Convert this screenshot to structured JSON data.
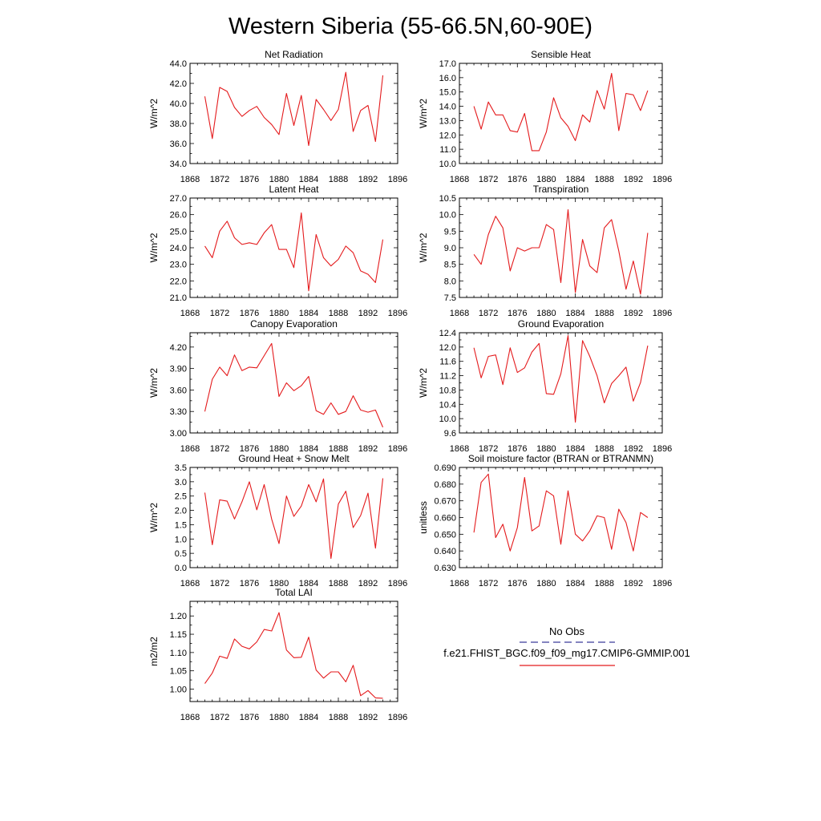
{
  "figure": {
    "title": "Western Siberia (55-66.5N,60-90E)"
  },
  "colors": {
    "model": "#e41a1c",
    "obs": "#3a3a9a",
    "axis": "#000000"
  },
  "legend": {
    "obs_label": "No Obs",
    "model_label": "f.e21.FHIST_BGC.f09_f09_mg17.CMIP6-GMMIP.001"
  },
  "chart_data": [
    {
      "type": "line",
      "title": "Net Radiation",
      "xlabel": "",
      "ylabel": "W/m^2",
      "xlim": [
        1868,
        1896
      ],
      "ylim": [
        34.0,
        44.0
      ],
      "xticks": [
        1868,
        1872,
        1876,
        1880,
        1884,
        1888,
        1892,
        1896
      ],
      "xtick_labels": [
        "1868",
        "1872",
        "1876",
        "1880",
        "1884",
        "1888",
        "1892",
        "1896"
      ],
      "yticks": [
        34.0,
        36.0,
        38.0,
        40.0,
        42.0,
        44.0
      ],
      "ytick_labels": [
        "34.0",
        "36.0",
        "38.0",
        "40.0",
        "42.0",
        "44.0"
      ],
      "series": [
        {
          "x": [
            1870,
            1871,
            1872,
            1873,
            1874,
            1875,
            1876,
            1877,
            1878,
            1879,
            1880,
            1881,
            1882,
            1883,
            1884,
            1885,
            1886,
            1887,
            1888,
            1889,
            1890,
            1891,
            1892,
            1893,
            1894
          ],
          "values": [
            40.7,
            36.5,
            41.6,
            41.2,
            39.6,
            38.7,
            39.3,
            39.7,
            38.6,
            37.9,
            36.9,
            41.0,
            37.8,
            40.8,
            35.8,
            40.4,
            39.4,
            38.3,
            39.4,
            43.1,
            37.2,
            39.3,
            39.8,
            36.2,
            42.8
          ]
        }
      ]
    },
    {
      "type": "line",
      "title": "Sensible Heat",
      "xlabel": "",
      "ylabel": "W/m^2",
      "xlim": [
        1868,
        1896
      ],
      "ylim": [
        10.0,
        17.0
      ],
      "xticks": [
        1868,
        1872,
        1876,
        1880,
        1884,
        1888,
        1892,
        1896
      ],
      "xtick_labels": [
        "1868",
        "1872",
        "1876",
        "1880",
        "1884",
        "1888",
        "1892",
        "1896"
      ],
      "yticks": [
        10.0,
        11.0,
        12.0,
        13.0,
        14.0,
        15.0,
        16.0,
        17.0
      ],
      "ytick_labels": [
        "10.0",
        "11.0",
        "12.0",
        "13.0",
        "14.0",
        "15.0",
        "16.0",
        "17.0"
      ],
      "series": [
        {
          "x": [
            1870,
            1871,
            1872,
            1873,
            1874,
            1875,
            1876,
            1877,
            1878,
            1879,
            1880,
            1881,
            1882,
            1883,
            1884,
            1885,
            1886,
            1887,
            1888,
            1889,
            1890,
            1891,
            1892,
            1893,
            1894
          ],
          "values": [
            14.0,
            12.4,
            14.3,
            13.4,
            13.4,
            12.3,
            12.2,
            13.5,
            10.9,
            10.9,
            12.2,
            14.6,
            13.2,
            12.6,
            11.6,
            13.4,
            12.9,
            15.1,
            13.8,
            16.3,
            12.3,
            14.9,
            14.8,
            13.7,
            15.1
          ]
        }
      ]
    },
    {
      "type": "line",
      "title": "Latent Heat",
      "xlabel": "",
      "ylabel": "W/m^2",
      "xlim": [
        1868,
        1896
      ],
      "ylim": [
        21.0,
        27.0
      ],
      "xticks": [
        1868,
        1872,
        1876,
        1880,
        1884,
        1888,
        1892,
        1896
      ],
      "xtick_labels": [
        "1868",
        "1872",
        "1876",
        "1880",
        "1884",
        "1888",
        "1892",
        "1896"
      ],
      "yticks": [
        21.0,
        22.0,
        23.0,
        24.0,
        25.0,
        26.0,
        27.0
      ],
      "ytick_labels": [
        "21.0",
        "22.0",
        "23.0",
        "24.0",
        "25.0",
        "26.0",
        "27.0"
      ],
      "series": [
        {
          "x": [
            1870,
            1871,
            1872,
            1873,
            1874,
            1875,
            1876,
            1877,
            1878,
            1879,
            1880,
            1881,
            1882,
            1883,
            1884,
            1885,
            1886,
            1887,
            1888,
            1889,
            1890,
            1891,
            1892,
            1893,
            1894
          ],
          "values": [
            24.1,
            23.4,
            25.0,
            25.6,
            24.6,
            24.2,
            24.3,
            24.2,
            24.9,
            25.4,
            23.9,
            23.9,
            22.8,
            26.1,
            21.4,
            24.8,
            23.4,
            22.9,
            23.3,
            24.1,
            23.7,
            22.6,
            22.4,
            21.9,
            24.5
          ]
        }
      ]
    },
    {
      "type": "line",
      "title": "Transpiration",
      "xlabel": "",
      "ylabel": "W/m^2",
      "xlim": [
        1868,
        1896
      ],
      "ylim": [
        7.5,
        10.5
      ],
      "xticks": [
        1868,
        1872,
        1876,
        1880,
        1884,
        1888,
        1892,
        1896
      ],
      "xtick_labels": [
        "1868",
        "1872",
        "1876",
        "1880",
        "1884",
        "1888",
        "1892",
        "1896"
      ],
      "yticks": [
        7.5,
        8.0,
        8.5,
        9.0,
        9.5,
        10.0,
        10.5
      ],
      "ytick_labels": [
        "7.5",
        "8.0",
        "8.5",
        "9.0",
        "9.5",
        "10.0",
        "10.5"
      ],
      "series": [
        {
          "x": [
            1870,
            1871,
            1872,
            1873,
            1874,
            1875,
            1876,
            1877,
            1878,
            1879,
            1880,
            1881,
            1882,
            1883,
            1884,
            1885,
            1886,
            1887,
            1888,
            1889,
            1890,
            1891,
            1892,
            1893,
            1894
          ],
          "values": [
            8.8,
            8.5,
            9.4,
            9.95,
            9.6,
            8.3,
            9.0,
            8.9,
            9.0,
            9.0,
            9.7,
            9.55,
            7.95,
            10.15,
            7.65,
            9.25,
            8.45,
            8.25,
            9.6,
            9.85,
            8.9,
            7.75,
            8.6,
            7.6,
            9.45
          ]
        }
      ]
    },
    {
      "type": "line",
      "title": "Canopy Evaporation",
      "xlabel": "",
      "ylabel": "W/m^2",
      "xlim": [
        1868,
        1896
      ],
      "ylim": [
        3.0,
        4.4
      ],
      "xticks": [
        1868,
        1872,
        1876,
        1880,
        1884,
        1888,
        1892,
        1896
      ],
      "xtick_labels": [
        "1868",
        "1872",
        "1876",
        "1880",
        "1884",
        "1888",
        "1892",
        "1896"
      ],
      "yticks": [
        3.0,
        3.3,
        3.6,
        3.9,
        4.2
      ],
      "ytick_labels": [
        "3.00",
        "3.30",
        "3.60",
        "3.90",
        "4.20"
      ],
      "series": [
        {
          "x": [
            1870,
            1871,
            1872,
            1873,
            1874,
            1875,
            1876,
            1877,
            1878,
            1879,
            1880,
            1881,
            1882,
            1883,
            1884,
            1885,
            1886,
            1887,
            1888,
            1889,
            1890,
            1891,
            1892,
            1893,
            1894
          ],
          "values": [
            3.3,
            3.75,
            3.92,
            3.8,
            4.09,
            3.87,
            3.92,
            3.91,
            4.08,
            4.25,
            3.51,
            3.7,
            3.59,
            3.66,
            3.79,
            3.31,
            3.26,
            3.42,
            3.26,
            3.3,
            3.52,
            3.32,
            3.29,
            3.32,
            3.08
          ]
        }
      ]
    },
    {
      "type": "line",
      "title": "Ground Evaporation",
      "xlabel": "",
      "ylabel": "W/m^2",
      "xlim": [
        1868,
        1896
      ],
      "ylim": [
        9.6,
        12.4
      ],
      "xticks": [
        1868,
        1872,
        1876,
        1880,
        1884,
        1888,
        1892,
        1896
      ],
      "xtick_labels": [
        "1868",
        "1872",
        "1876",
        "1880",
        "1884",
        "1888",
        "1892",
        "1896"
      ],
      "yticks": [
        9.6,
        10.0,
        10.4,
        10.8,
        11.2,
        11.6,
        12.0,
        12.4
      ],
      "ytick_labels": [
        "9.6",
        "10.0",
        "10.4",
        "10.8",
        "11.2",
        "11.6",
        "12.0",
        "12.4"
      ],
      "series": [
        {
          "x": [
            1870,
            1871,
            1872,
            1873,
            1874,
            1875,
            1876,
            1877,
            1878,
            1879,
            1880,
            1881,
            1882,
            1883,
            1884,
            1885,
            1886,
            1887,
            1888,
            1889,
            1890,
            1891,
            1892,
            1893,
            1894
          ],
          "values": [
            11.98,
            11.14,
            11.74,
            11.78,
            10.95,
            11.98,
            11.29,
            11.42,
            11.86,
            12.1,
            10.7,
            10.68,
            11.25,
            12.32,
            9.9,
            12.18,
            11.74,
            11.2,
            10.44,
            10.98,
            11.2,
            11.44,
            10.49,
            11.01,
            12.04
          ]
        }
      ]
    },
    {
      "type": "line",
      "title": "Ground Heat + Snow Melt",
      "xlabel": "",
      "ylabel": "W/m^2",
      "xlim": [
        1868,
        1896
      ],
      "ylim": [
        0.0,
        3.5
      ],
      "xticks": [
        1868,
        1872,
        1876,
        1880,
        1884,
        1888,
        1892,
        1896
      ],
      "xtick_labels": [
        "1868",
        "1872",
        "1876",
        "1880",
        "1884",
        "1888",
        "1892",
        "1896"
      ],
      "yticks": [
        0.0,
        0.5,
        1.0,
        1.5,
        2.0,
        2.5,
        3.0,
        3.5
      ],
      "ytick_labels": [
        "0.0",
        "0.5",
        "1.0",
        "1.5",
        "2.0",
        "2.5",
        "3.0",
        "3.5"
      ],
      "series": [
        {
          "x": [
            1870,
            1871,
            1872,
            1873,
            1874,
            1875,
            1876,
            1877,
            1878,
            1879,
            1880,
            1881,
            1882,
            1883,
            1884,
            1885,
            1886,
            1887,
            1888,
            1889,
            1890,
            1891,
            1892,
            1893,
            1894
          ],
          "values": [
            2.62,
            0.8,
            2.37,
            2.32,
            1.7,
            2.3,
            3.0,
            2.02,
            2.9,
            1.7,
            0.84,
            2.5,
            1.79,
            2.15,
            2.9,
            2.3,
            3.1,
            0.32,
            2.22,
            2.67,
            1.4,
            1.82,
            2.6,
            0.68,
            3.12
          ]
        }
      ]
    },
    {
      "type": "line",
      "title": "Soil moisture factor (BTRAN or BTRANMN)",
      "xlabel": "",
      "ylabel": "unitless",
      "xlim": [
        1868,
        1896
      ],
      "ylim": [
        0.63,
        0.69
      ],
      "xticks": [
        1868,
        1872,
        1876,
        1880,
        1884,
        1888,
        1892,
        1896
      ],
      "xtick_labels": [
        "1868",
        "1872",
        "1876",
        "1880",
        "1884",
        "1888",
        "1892",
        "1896"
      ],
      "yticks": [
        0.63,
        0.64,
        0.65,
        0.66,
        0.67,
        0.68,
        0.69
      ],
      "ytick_labels": [
        "0.630",
        "0.640",
        "0.650",
        "0.660",
        "0.670",
        "0.680",
        "0.690"
      ],
      "series": [
        {
          "x": [
            1870,
            1871,
            1872,
            1873,
            1874,
            1875,
            1876,
            1877,
            1878,
            1879,
            1880,
            1881,
            1882,
            1883,
            1884,
            1885,
            1886,
            1887,
            1888,
            1889,
            1890,
            1891,
            1892,
            1893,
            1894
          ],
          "values": [
            0.651,
            0.681,
            0.686,
            0.648,
            0.656,
            0.64,
            0.654,
            0.684,
            0.652,
            0.655,
            0.676,
            0.673,
            0.644,
            0.676,
            0.65,
            0.646,
            0.652,
            0.661,
            0.66,
            0.641,
            0.665,
            0.657,
            0.64,
            0.663,
            0.66
          ]
        }
      ]
    },
    {
      "type": "line",
      "title": "Total LAI",
      "xlabel": "",
      "ylabel": "m2/m2",
      "xlim": [
        1868,
        1896
      ],
      "ylim": [
        0.966,
        1.24
      ],
      "xticks": [
        1868,
        1872,
        1876,
        1880,
        1884,
        1888,
        1892,
        1896
      ],
      "xtick_labels": [
        "1868",
        "1872",
        "1876",
        "1880",
        "1884",
        "1888",
        "1892",
        "1896"
      ],
      "yticks": [
        1.0,
        1.05,
        1.1,
        1.15,
        1.2
      ],
      "ytick_labels": [
        "1.00",
        "1.05",
        "1.10",
        "1.15",
        "1.20"
      ],
      "series": [
        {
          "x": [
            1870,
            1871,
            1872,
            1873,
            1874,
            1875,
            1876,
            1877,
            1878,
            1879,
            1880,
            1881,
            1882,
            1883,
            1884,
            1885,
            1886,
            1887,
            1888,
            1889,
            1890,
            1891,
            1892,
            1893,
            1894
          ],
          "values": [
            1.015,
            1.044,
            1.09,
            1.084,
            1.137,
            1.117,
            1.11,
            1.129,
            1.163,
            1.159,
            1.209,
            1.107,
            1.086,
            1.087,
            1.142,
            1.052,
            1.03,
            1.047,
            1.047,
            1.02,
            1.065,
            0.982,
            0.996,
            0.976,
            0.975
          ]
        }
      ]
    }
  ]
}
